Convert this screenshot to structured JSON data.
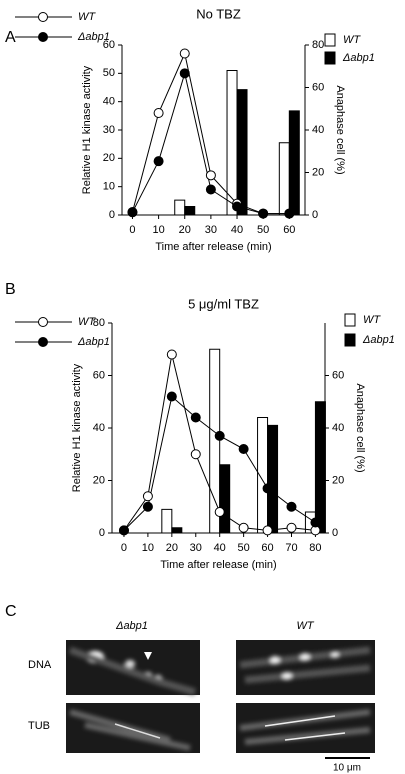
{
  "panel_labels": [
    "A",
    "B",
    "C"
  ],
  "chart_data": [
    {
      "type": "combo",
      "title": "No TBZ",
      "x_label": "Time after release (min)",
      "y_label": "Relative H1 kinase activity",
      "y2_label": "Anaphase cell (%)",
      "x": [
        0,
        10,
        20,
        30,
        40,
        50,
        60
      ],
      "xlim": [
        -4,
        66
      ],
      "xticks": [
        0,
        10,
        20,
        30,
        40,
        50,
        60
      ],
      "ylim": [
        0,
        60
      ],
      "yticks": [
        0,
        10,
        20,
        30,
        40,
        50,
        60
      ],
      "y2lim": [
        0,
        80
      ],
      "y2ticks": [
        0,
        20,
        40,
        60,
        80
      ],
      "series": [
        {
          "name": "WT",
          "type": "line",
          "color": "#ffffff",
          "values": [
            1,
            36,
            57,
            14,
            4,
            0.5,
            0.5
          ]
        },
        {
          "name": "Δabp1",
          "type": "line",
          "color": "#000000",
          "values": [
            1,
            19,
            50,
            9,
            3,
            0.5,
            0.5
          ]
        },
        {
          "name": "WT",
          "type": "bar",
          "axis": "y2",
          "color": "#ffffff",
          "values": [
            null,
            null,
            7,
            null,
            68,
            null,
            34
          ]
        },
        {
          "name": "Δabp1",
          "type": "bar",
          "axis": "y2",
          "color": "#000000",
          "values": [
            null,
            null,
            4,
            null,
            59,
            null,
            49
          ]
        }
      ]
    },
    {
      "type": "combo",
      "title": "5 μg/ml TBZ",
      "x_label": "Time after release (min)",
      "y_label": "Relative H1 kinase activity",
      "y2_label": "Anaphase cell (%)",
      "x": [
        0,
        10,
        20,
        30,
        40,
        50,
        60,
        70,
        80
      ],
      "xlim": [
        -5,
        84
      ],
      "xticks": [
        0,
        10,
        20,
        30,
        40,
        50,
        60,
        70,
        80
      ],
      "ylim": [
        0,
        80
      ],
      "yticks": [
        0,
        20,
        40,
        60,
        80
      ],
      "y2lim": [
        0,
        80
      ],
      "y2ticks": [
        0,
        20,
        40,
        60
      ],
      "series": [
        {
          "name": "WT",
          "type": "line",
          "color": "#ffffff",
          "values": [
            1,
            14,
            68,
            30,
            8,
            2,
            1,
            2,
            1
          ]
        },
        {
          "name": "Δabp1",
          "type": "line",
          "color": "#000000",
          "values": [
            1,
            10,
            52,
            44,
            37,
            32,
            17,
            10,
            4
          ]
        },
        {
          "name": "WT",
          "type": "bar",
          "axis": "y2",
          "color": "#ffffff",
          "values": [
            null,
            null,
            9,
            null,
            70,
            null,
            44,
            null,
            8
          ]
        },
        {
          "name": "Δabp1",
          "type": "bar",
          "axis": "y2",
          "color": "#000000",
          "values": [
            null,
            null,
            2,
            null,
            26,
            null,
            41,
            null,
            50
          ]
        }
      ]
    }
  ],
  "micrographs": {
    "columns": [
      "Δabp1",
      "WT"
    ],
    "rows": [
      "DNA",
      "TUB"
    ],
    "scale_bar": "10 μm"
  }
}
